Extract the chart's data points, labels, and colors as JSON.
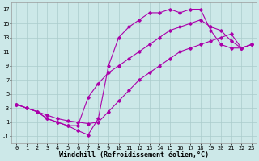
{
  "background_color": "#cce8e8",
  "grid_color": "#aacccc",
  "line_color": "#aa00aa",
  "xlim": [
    -0.5,
    23.5
  ],
  "ylim": [
    -2,
    18
  ],
  "xticks": [
    0,
    1,
    2,
    3,
    4,
    5,
    6,
    7,
    8,
    9,
    10,
    11,
    12,
    13,
    14,
    15,
    16,
    17,
    18,
    19,
    20,
    21,
    22,
    23
  ],
  "yticks": [
    -1,
    1,
    3,
    5,
    7,
    9,
    11,
    13,
    15,
    17
  ],
  "xlabel": "Windchill (Refroidissement éolien,°C)",
  "series1_x": [
    0,
    1,
    2,
    3,
    4,
    5,
    6,
    7,
    8,
    9,
    10,
    11,
    12,
    13,
    14,
    15,
    16,
    17,
    18,
    19,
    20,
    21,
    22,
    23
  ],
  "series1_y": [
    3.5,
    3.0,
    2.5,
    1.5,
    1.0,
    0.5,
    0.5,
    4.5,
    6.5,
    8.0,
    9.0,
    10.0,
    11.0,
    12.0,
    13.0,
    14.0,
    14.5,
    15.0,
    15.5,
    14.5,
    14.0,
    12.5,
    11.5,
    12.0
  ],
  "series2_x": [
    0,
    1,
    2,
    3,
    4,
    5,
    6,
    7,
    8,
    9,
    10,
    11,
    12,
    13,
    14,
    15,
    16,
    17,
    18,
    19,
    20,
    21,
    22,
    23
  ],
  "series2_y": [
    3.5,
    3.0,
    2.5,
    1.5,
    1.0,
    0.5,
    -0.2,
    -0.8,
    1.5,
    9.0,
    13.0,
    14.5,
    15.5,
    16.5,
    16.5,
    17.0,
    16.5,
    17.0,
    17.0,
    14.0,
    12.0,
    11.5,
    11.5,
    12.0
  ],
  "series3_x": [
    0,
    1,
    2,
    3,
    4,
    5,
    6,
    7,
    8,
    9,
    10,
    11,
    12,
    13,
    14,
    15,
    16,
    17,
    18,
    19,
    20,
    21,
    22,
    23
  ],
  "series3_y": [
    3.5,
    3.0,
    2.5,
    2.0,
    1.5,
    1.2,
    1.0,
    0.8,
    1.0,
    2.5,
    4.0,
    5.5,
    7.0,
    8.0,
    9.0,
    10.0,
    11.0,
    11.5,
    12.0,
    12.5,
    13.0,
    13.5,
    11.5,
    12.0
  ],
  "tick_fontsize": 5,
  "xlabel_fontsize": 6
}
